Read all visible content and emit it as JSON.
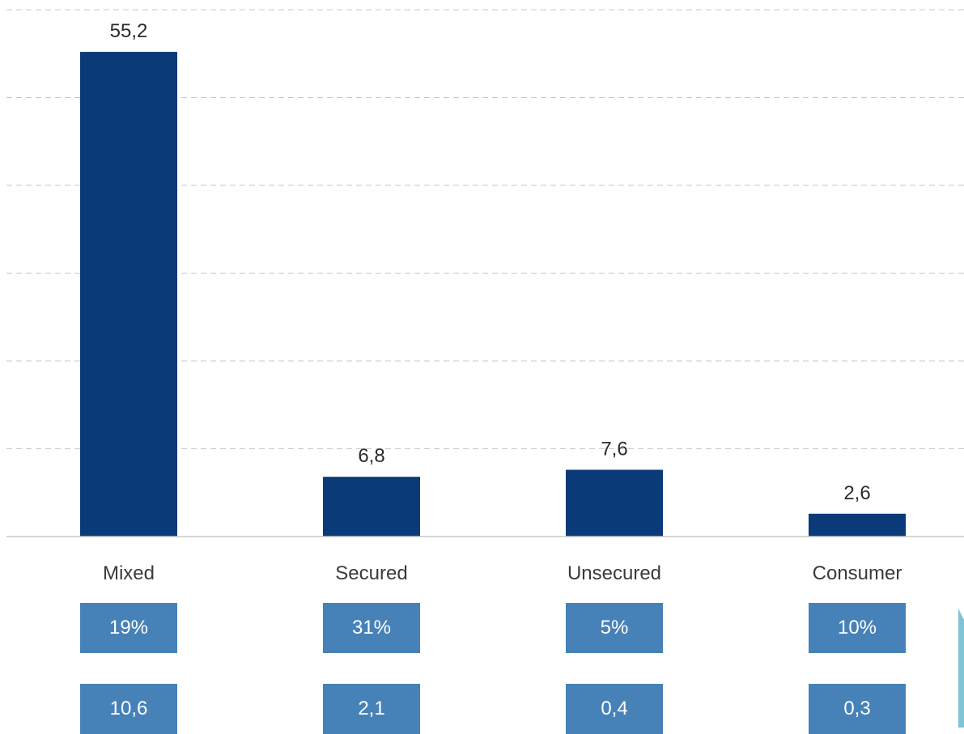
{
  "chart_data": {
    "type": "bar",
    "categories": [
      "Mixed",
      "Secured",
      "Unsecured",
      "Consumer"
    ],
    "values": [
      55.2,
      6.8,
      7.6,
      2.6
    ],
    "value_labels": [
      "55,2",
      "6,8",
      "7,6",
      "2,6"
    ],
    "grid": true,
    "gridline_step": 10,
    "colors": {
      "bar": "#0b3a79",
      "box": "#4682b8",
      "grid": "#c8c8c8",
      "side_accent": "#7fc4d4"
    }
  },
  "table_rows": [
    {
      "cells": [
        "19%",
        "31%",
        "5%",
        "10%"
      ]
    },
    {
      "cells": [
        "10,6",
        "2,1",
        "0,4",
        "0,3"
      ]
    }
  ]
}
